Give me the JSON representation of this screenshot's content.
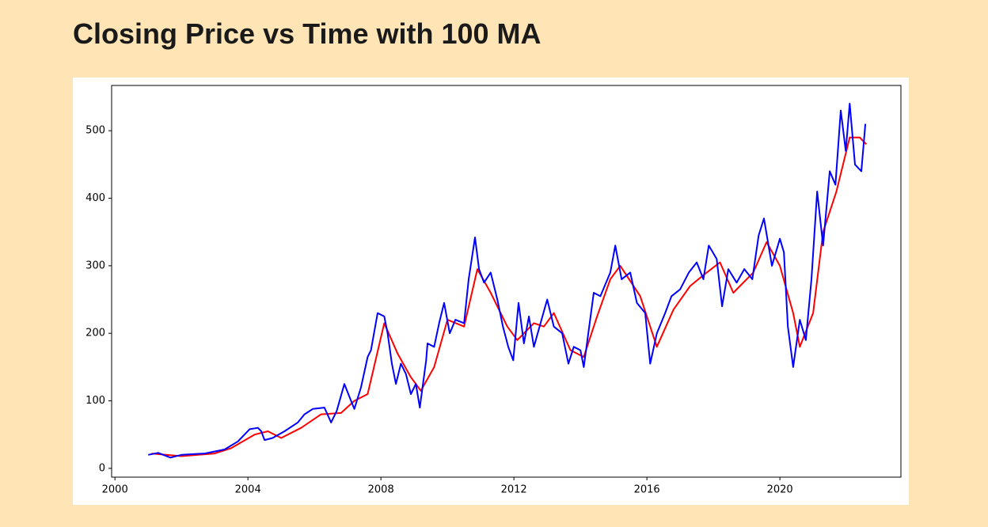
{
  "chart_data": {
    "type": "line",
    "title": "Closing Price vs Time with 100 MA",
    "xlim": [
      1999.9,
      2023.64
    ],
    "xticks": [
      2000,
      2004,
      2008,
      2012,
      2016,
      2020
    ],
    "ylim": [
      -13,
      567
    ],
    "yticks": [
      0,
      100,
      200,
      300,
      400,
      500
    ],
    "series": [
      {
        "color": "#0000ff",
        "x": [
          2001.0,
          2001.3,
          2001.67,
          2002.0,
          2002.7,
          2003.3,
          2003.7,
          2004.05,
          2004.3,
          2004.4,
          2004.5,
          2004.74,
          2005.1,
          2005.5,
          2005.7,
          2005.95,
          2006.3,
          2006.5,
          2006.67,
          2006.9,
          2007.14,
          2007.2,
          2007.4,
          2007.6,
          2007.7,
          2007.9,
          2008.1,
          2008.2,
          2008.33,
          2008.45,
          2008.6,
          2008.75,
          2008.9,
          2009.05,
          2009.17,
          2009.36,
          2009.4,
          2009.6,
          2009.75,
          2009.9,
          2010.07,
          2010.24,
          2010.5,
          2010.64,
          2010.83,
          2010.95,
          2011.1,
          2011.3,
          2011.5,
          2011.67,
          2011.83,
          2011.98,
          2012.14,
          2012.3,
          2012.45,
          2012.6,
          2012.8,
          2013.0,
          2013.2,
          2013.45,
          2013.64,
          2013.8,
          2014.0,
          2014.1,
          2014.4,
          2014.6,
          2014.9,
          2015.05,
          2015.24,
          2015.5,
          2015.7,
          2015.95,
          2016.1,
          2016.3,
          2016.55,
          2016.74,
          2017.0,
          2017.26,
          2017.5,
          2017.7,
          2017.86,
          2018.1,
          2018.26,
          2018.45,
          2018.7,
          2018.93,
          2019.17,
          2019.36,
          2019.52,
          2019.76,
          2020.0,
          2020.12,
          2020.24,
          2020.4,
          2020.6,
          2020.78,
          2020.95,
          2021.12,
          2021.3,
          2021.5,
          2021.67,
          2021.83,
          2021.98,
          2022.1,
          2022.26,
          2022.45,
          2022.57
        ],
        "values": [
          20,
          23,
          16,
          20,
          22,
          28,
          40,
          58,
          60,
          55,
          42,
          45,
          55,
          68,
          80,
          88,
          90,
          68,
          85,
          125,
          95,
          88,
          120,
          165,
          175,
          230,
          225,
          200,
          155,
          125,
          155,
          140,
          110,
          125,
          90,
          160,
          185,
          180,
          215,
          245,
          200,
          220,
          215,
          280,
          342,
          295,
          275,
          290,
          250,
          210,
          180,
          160,
          245,
          185,
          225,
          180,
          215,
          250,
          210,
          200,
          155,
          180,
          175,
          150,
          260,
          255,
          290,
          330,
          280,
          290,
          245,
          230,
          155,
          200,
          230,
          255,
          265,
          290,
          305,
          280,
          330,
          310,
          240,
          295,
          275,
          295,
          280,
          345,
          370,
          300,
          340,
          320,
          210,
          150,
          220,
          190,
          280,
          410,
          330,
          440,
          420,
          530,
          470,
          540,
          450,
          440,
          510
        ]
      },
      {
        "color": "#ff0000",
        "x": [
          2001.1,
          2002.0,
          2003.0,
          2003.5,
          2004.2,
          2004.6,
          2005.0,
          2005.6,
          2006.2,
          2006.8,
          2007.2,
          2007.6,
          2008.1,
          2008.5,
          2008.9,
          2009.2,
          2009.6,
          2010.0,
          2010.5,
          2010.9,
          2011.3,
          2011.8,
          2012.1,
          2012.6,
          2012.9,
          2013.2,
          2013.7,
          2014.1,
          2014.5,
          2014.9,
          2015.2,
          2015.8,
          2016.3,
          2016.8,
          2017.3,
          2017.8,
          2018.2,
          2018.6,
          2019.2,
          2019.6,
          2020.0,
          2020.4,
          2020.6,
          2021.0,
          2021.3,
          2021.7,
          2022.1,
          2022.4,
          2022.6
        ],
        "values": [
          22,
          18,
          22,
          30,
          50,
          55,
          45,
          60,
          80,
          82,
          100,
          110,
          215,
          170,
          135,
          115,
          150,
          220,
          210,
          295,
          260,
          210,
          190,
          215,
          210,
          230,
          175,
          165,
          225,
          280,
          300,
          255,
          180,
          235,
          270,
          290,
          305,
          260,
          290,
          335,
          300,
          230,
          180,
          230,
          350,
          410,
          490,
          490,
          480
        ]
      }
    ]
  }
}
